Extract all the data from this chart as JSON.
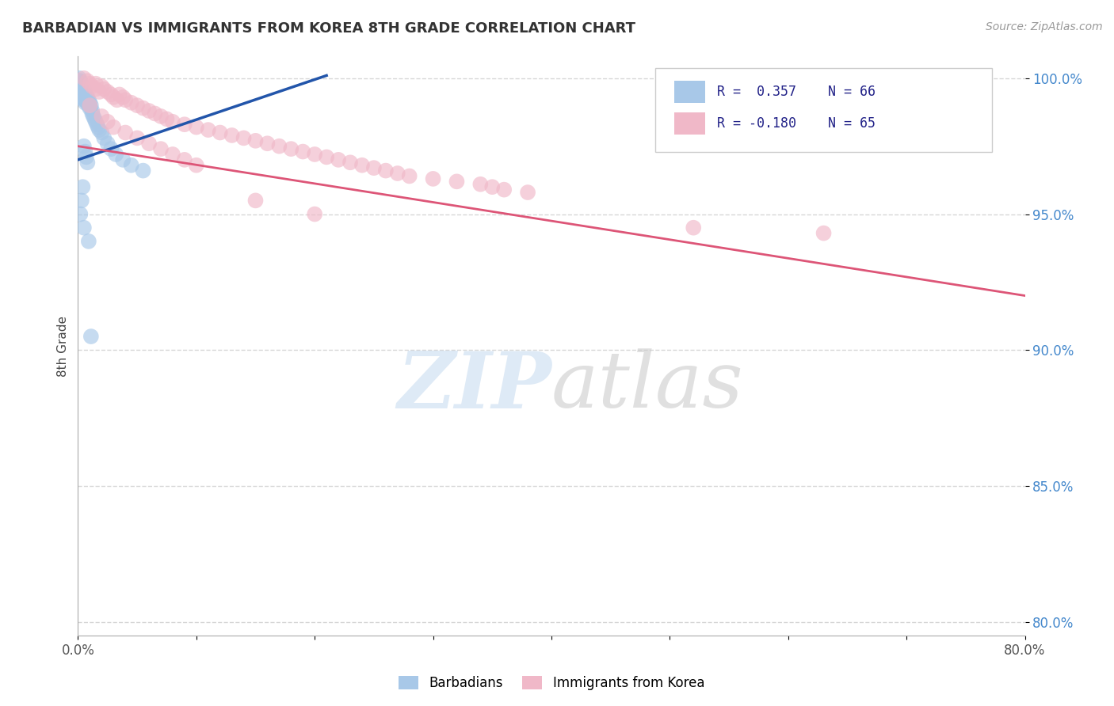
{
  "title": "BARBADIAN VS IMMIGRANTS FROM KOREA 8TH GRADE CORRELATION CHART",
  "source_text": "Source: ZipAtlas.com",
  "ylabel": "8th Grade",
  "xmin": 0.0,
  "xmax": 0.8,
  "ymin": 0.795,
  "ymax": 1.008,
  "yticks": [
    0.8,
    0.85,
    0.9,
    0.95,
    1.0
  ],
  "ytick_labels": [
    "80.0%",
    "85.0%",
    "90.0%",
    "95.0%",
    "100.0%"
  ],
  "xticks": [
    0.0,
    0.1,
    0.2,
    0.3,
    0.4,
    0.5,
    0.6,
    0.7,
    0.8
  ],
  "xtick_labels": [
    "0.0%",
    "",
    "",
    "",
    "",
    "",
    "",
    "",
    "80.0%"
  ],
  "blue_R": 0.357,
  "blue_N": 66,
  "pink_R": -0.18,
  "pink_N": 65,
  "blue_color": "#a8c8e8",
  "pink_color": "#f0b8c8",
  "blue_line_color": "#2255aa",
  "pink_line_color": "#dd5577",
  "legend_label_blue": "Barbadians",
  "legend_label_pink": "Immigrants from Korea",
  "blue_scatter_x": [
    0.001,
    0.001,
    0.001,
    0.002,
    0.002,
    0.002,
    0.002,
    0.003,
    0.003,
    0.003,
    0.003,
    0.003,
    0.003,
    0.004,
    0.004,
    0.004,
    0.004,
    0.005,
    0.005,
    0.005,
    0.005,
    0.005,
    0.006,
    0.006,
    0.006,
    0.006,
    0.006,
    0.007,
    0.007,
    0.007,
    0.008,
    0.008,
    0.008,
    0.009,
    0.009,
    0.009,
    0.01,
    0.01,
    0.01,
    0.011,
    0.012,
    0.012,
    0.013,
    0.014,
    0.015,
    0.016,
    0.017,
    0.018,
    0.02,
    0.022,
    0.025,
    0.028,
    0.032,
    0.038,
    0.045,
    0.055,
    0.005,
    0.006,
    0.007,
    0.008,
    0.004,
    0.003,
    0.002,
    0.005,
    0.009,
    0.011
  ],
  "blue_scatter_y": [
    1.0,
    0.999,
    0.998,
    0.999,
    0.998,
    0.997,
    0.996,
    0.998,
    0.997,
    0.996,
    0.995,
    0.994,
    0.993,
    0.997,
    0.996,
    0.995,
    0.994,
    0.996,
    0.995,
    0.994,
    0.993,
    0.992,
    0.995,
    0.994,
    0.993,
    0.992,
    0.991,
    0.994,
    0.993,
    0.992,
    0.993,
    0.992,
    0.991,
    0.992,
    0.991,
    0.99,
    0.991,
    0.99,
    0.989,
    0.99,
    0.988,
    0.987,
    0.986,
    0.985,
    0.984,
    0.983,
    0.982,
    0.981,
    0.98,
    0.978,
    0.976,
    0.974,
    0.972,
    0.97,
    0.968,
    0.966,
    0.975,
    0.973,
    0.971,
    0.969,
    0.96,
    0.955,
    0.95,
    0.945,
    0.94,
    0.905
  ],
  "pink_scatter_x": [
    0.005,
    0.008,
    0.01,
    0.012,
    0.015,
    0.015,
    0.018,
    0.02,
    0.022,
    0.025,
    0.028,
    0.03,
    0.033,
    0.035,
    0.038,
    0.04,
    0.045,
    0.05,
    0.055,
    0.06,
    0.065,
    0.07,
    0.075,
    0.08,
    0.09,
    0.1,
    0.11,
    0.12,
    0.13,
    0.14,
    0.15,
    0.16,
    0.17,
    0.18,
    0.19,
    0.2,
    0.21,
    0.22,
    0.23,
    0.24,
    0.25,
    0.26,
    0.27,
    0.28,
    0.3,
    0.32,
    0.34,
    0.35,
    0.36,
    0.38,
    0.02,
    0.025,
    0.03,
    0.04,
    0.05,
    0.06,
    0.07,
    0.08,
    0.09,
    0.1,
    0.15,
    0.2,
    0.52,
    0.63,
    0.01
  ],
  "pink_scatter_y": [
    1.0,
    0.999,
    0.998,
    0.997,
    0.998,
    0.996,
    0.995,
    0.997,
    0.996,
    0.995,
    0.994,
    0.993,
    0.992,
    0.994,
    0.993,
    0.992,
    0.991,
    0.99,
    0.989,
    0.988,
    0.987,
    0.986,
    0.985,
    0.984,
    0.983,
    0.982,
    0.981,
    0.98,
    0.979,
    0.978,
    0.977,
    0.976,
    0.975,
    0.974,
    0.973,
    0.972,
    0.971,
    0.97,
    0.969,
    0.968,
    0.967,
    0.966,
    0.965,
    0.964,
    0.963,
    0.962,
    0.961,
    0.96,
    0.959,
    0.958,
    0.986,
    0.984,
    0.982,
    0.98,
    0.978,
    0.976,
    0.974,
    0.972,
    0.97,
    0.968,
    0.955,
    0.95,
    0.945,
    0.943,
    0.99
  ],
  "blue_trend_x": [
    0.0,
    0.21
  ],
  "blue_trend_y": [
    0.97,
    1.001
  ],
  "pink_trend_x": [
    0.0,
    0.8
  ],
  "pink_trend_y": [
    0.975,
    0.92
  ]
}
